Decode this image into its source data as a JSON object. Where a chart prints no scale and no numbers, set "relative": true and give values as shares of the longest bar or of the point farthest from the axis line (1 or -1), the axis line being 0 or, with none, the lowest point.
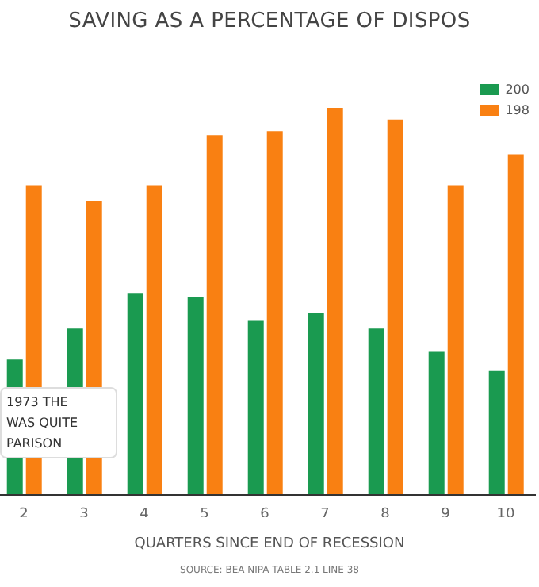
{
  "chart_data": {
    "type": "bar",
    "title": "SAVING AS A PERCENTAGE OF DISPOS",
    "xlabel": "QUARTERS SINCE END OF RECESSION",
    "relative": true,
    "categories": [
      "2",
      "3",
      "4",
      "5",
      "6",
      "7",
      "8",
      "9",
      "10"
    ],
    "series": [
      {
        "name": "200",
        "color": "#1a9a50",
        "values": [
          0.35,
          0.43,
          0.52,
          0.51,
          0.45,
          0.47,
          0.43,
          0.37,
          0.32
        ]
      },
      {
        "name": "198",
        "color": "#f98012",
        "values": [
          0.8,
          0.76,
          0.8,
          0.93,
          0.94,
          1,
          0.97,
          0.8,
          0.88
        ]
      }
    ],
    "legend": "top right",
    "grid": false,
    "annotations": [
      "1973 THE\nWAS QUITE\nPARISON",
      "SOURCE: BEA NIPA TABLE 2.1 LINE 38"
    ]
  }
}
